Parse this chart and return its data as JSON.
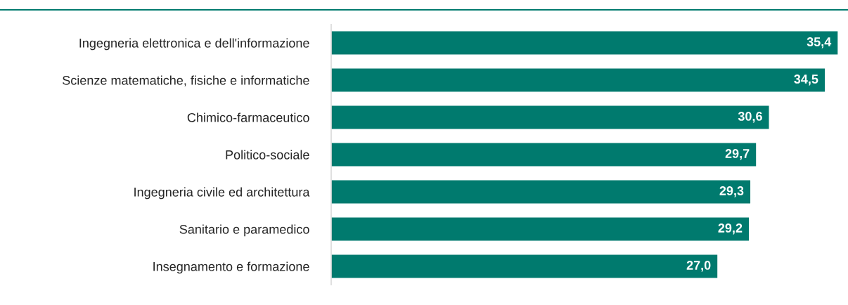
{
  "chart_data": {
    "type": "bar",
    "orientation": "horizontal",
    "categories": [
      "Ingegneria elettronica e dell'informazione",
      "Scienze matematiche, fisiche e informatiche",
      "Chimico-farmaceutico",
      "Politico-sociale",
      "Ingegneria civile ed architettura",
      "Sanitario e paramedico",
      "Insegnamento e formazione"
    ],
    "values": [
      35.4,
      34.5,
      30.6,
      29.7,
      29.3,
      29.2,
      27.0
    ],
    "value_labels": [
      "35,4",
      "34,5",
      "30,6",
      "29,7",
      "29,3",
      "29,2",
      "27,0"
    ],
    "color": "#007a6e",
    "tick_labels": "y",
    "grid": false,
    "legend": false
  }
}
